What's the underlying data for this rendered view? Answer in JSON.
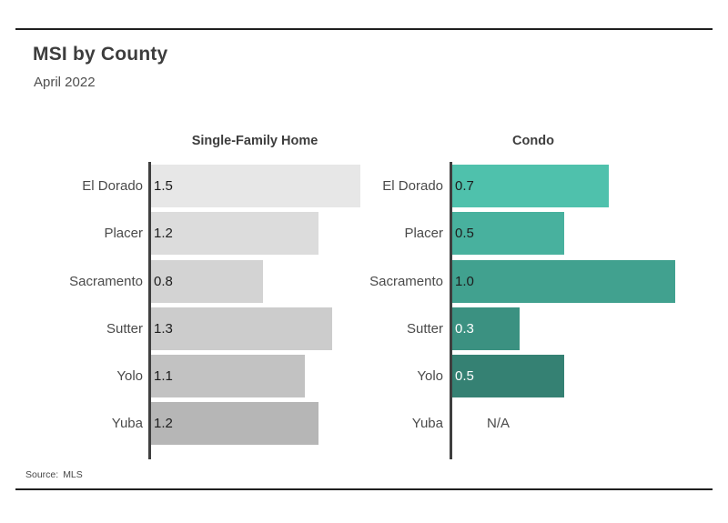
{
  "header": {
    "title": "MSI by County",
    "subtitle": "April 2022"
  },
  "footer": {
    "source_label": "Source:",
    "source_value": "MLS"
  },
  "chart_data": {
    "type": "bar",
    "orientation": "horizontal",
    "title": "MSI by County",
    "subtitle": "April 2022",
    "grid": false,
    "legend_position": "none",
    "categories": [
      "El Dorado",
      "Placer",
      "Sacramento",
      "Sutter",
      "Yolo",
      "Yuba"
    ],
    "panels": [
      {
        "title": "Single-Family Home",
        "axis_min": 0,
        "scale_max": 1.5,
        "values": [
          1.5,
          1.2,
          0.8,
          1.3,
          1.1,
          1.2
        ],
        "value_labels": [
          "1.5",
          "1.2",
          "0.8",
          "1.3",
          "1.1",
          "1.2"
        ],
        "bar_colors": [
          "#e7e7e7",
          "#dcdcdc",
          "#d3d3d3",
          "#cccccc",
          "#c2c2c2",
          "#b6b6b6"
        ],
        "value_text_colors": [
          "#1d1d1d",
          "#1d1d1d",
          "#1d1d1d",
          "#1d1d1d",
          "#1d1d1d",
          "#1d1d1d"
        ]
      },
      {
        "title": "Condo",
        "axis_min": 0,
        "scale_max": 1.0,
        "values": [
          0.7,
          0.5,
          1.0,
          0.3,
          0.5,
          null
        ],
        "value_labels": [
          "0.7",
          "0.5",
          "1.0",
          "0.3",
          "0.5",
          "N/A"
        ],
        "bar_colors": [
          "#4fc1ac",
          "#48b19e",
          "#41a18f",
          "#3b9181",
          "#358173",
          null
        ],
        "value_text_colors": [
          "#1d1d1d",
          "#1d1d1d",
          "#1d1d1d",
          "#ffffff",
          "#ffffff",
          "#4a4a4a"
        ]
      }
    ],
    "axis_color": "#3f3f3f"
  }
}
